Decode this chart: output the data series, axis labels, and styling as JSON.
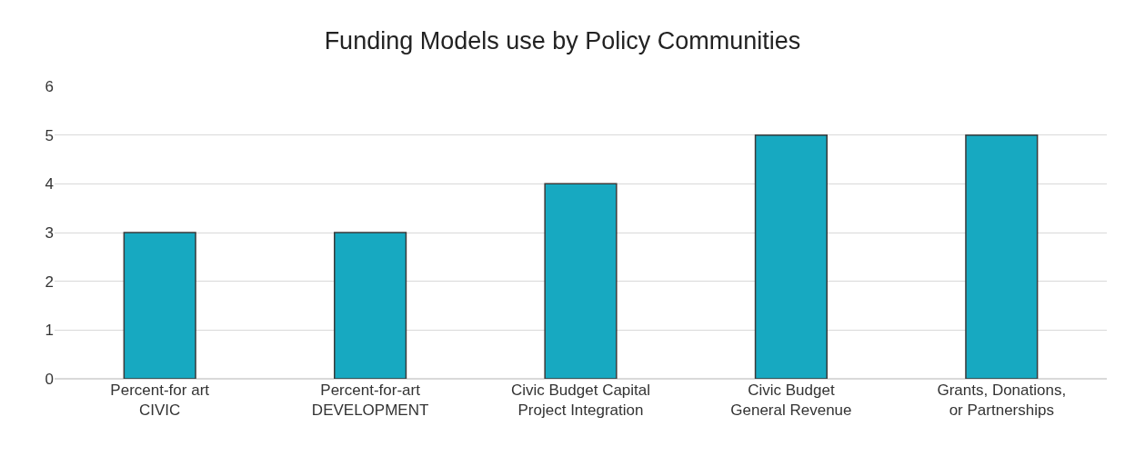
{
  "chart_data": {
    "type": "bar",
    "title": "Funding Models use by Policy Communities",
    "categories": [
      "Percent-for art\nCIVIC",
      "Percent-for-art\nDEVELOPMENT",
      "Civic Budget Capital\nProject Integration",
      "Civic Budget\nGeneral Revenue",
      "Grants, Donations,\nor Partnerships"
    ],
    "values": [
      3,
      3,
      4,
      5,
      5
    ],
    "color": "#17a9c1",
    "ylim": [
      0,
      6
    ],
    "yticks": [
      0,
      1,
      2,
      3,
      4,
      5,
      6
    ],
    "grid": "y",
    "legend": false
  }
}
